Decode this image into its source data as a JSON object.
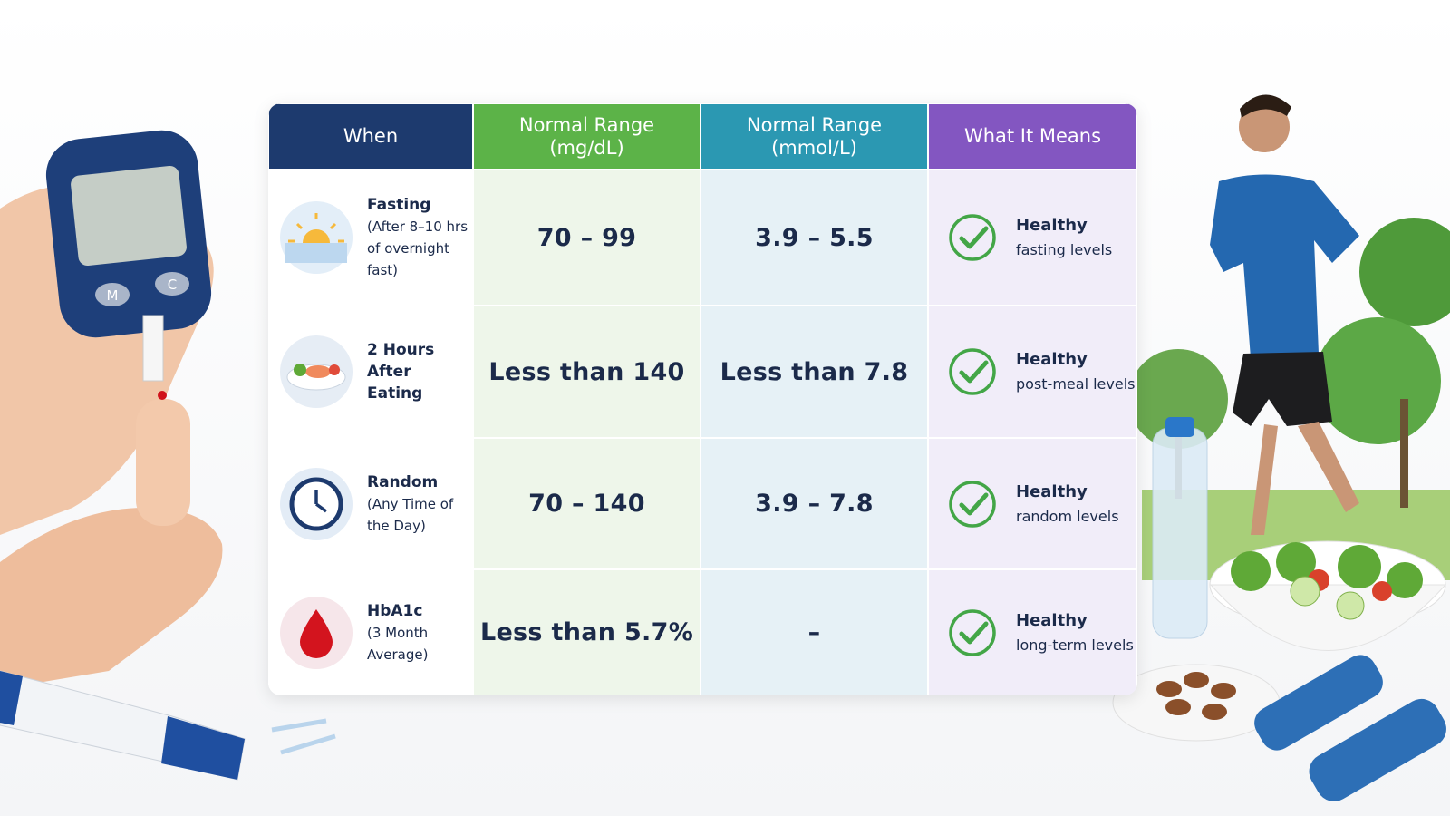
{
  "illustration": {
    "meter_buttons": [
      "M",
      "C"
    ]
  },
  "table": {
    "headers": [
      [
        "When"
      ],
      [
        "Normal Range",
        "(mg/dL)"
      ],
      [
        "Normal Range",
        "(mmol/L)"
      ],
      [
        "What It Means"
      ]
    ],
    "rows": [
      {
        "when": {
          "title": "Fasting",
          "detail": "(After 8–10 hrs of overnight fast)"
        },
        "mg_dl": "70 – 99",
        "mmol_l": "3.9 – 5.5",
        "meaning": {
          "title": "Healthy",
          "detail": "fasting levels"
        }
      },
      {
        "when": {
          "title": "2 Hours After Eating",
          "detail": ""
        },
        "mg_dl": "Less than 140",
        "mmol_l": "Less than 7.8",
        "meaning": {
          "title": "Healthy",
          "detail": "post-meal levels"
        }
      },
      {
        "when": {
          "title": "Random",
          "detail": "(Any Time of the Day)"
        },
        "mg_dl": "70 – 140",
        "mmol_l": "3.9 – 7.8",
        "meaning": {
          "title": "Healthy",
          "detail": "random levels"
        }
      },
      {
        "when": {
          "title": "HbA1c",
          "detail": "(3 Month Average)"
        },
        "mg_dl": "Less than 5.7%",
        "mmol_l": "–",
        "meaning": {
          "title": "Healthy",
          "detail": "long-term levels"
        }
      }
    ]
  }
}
